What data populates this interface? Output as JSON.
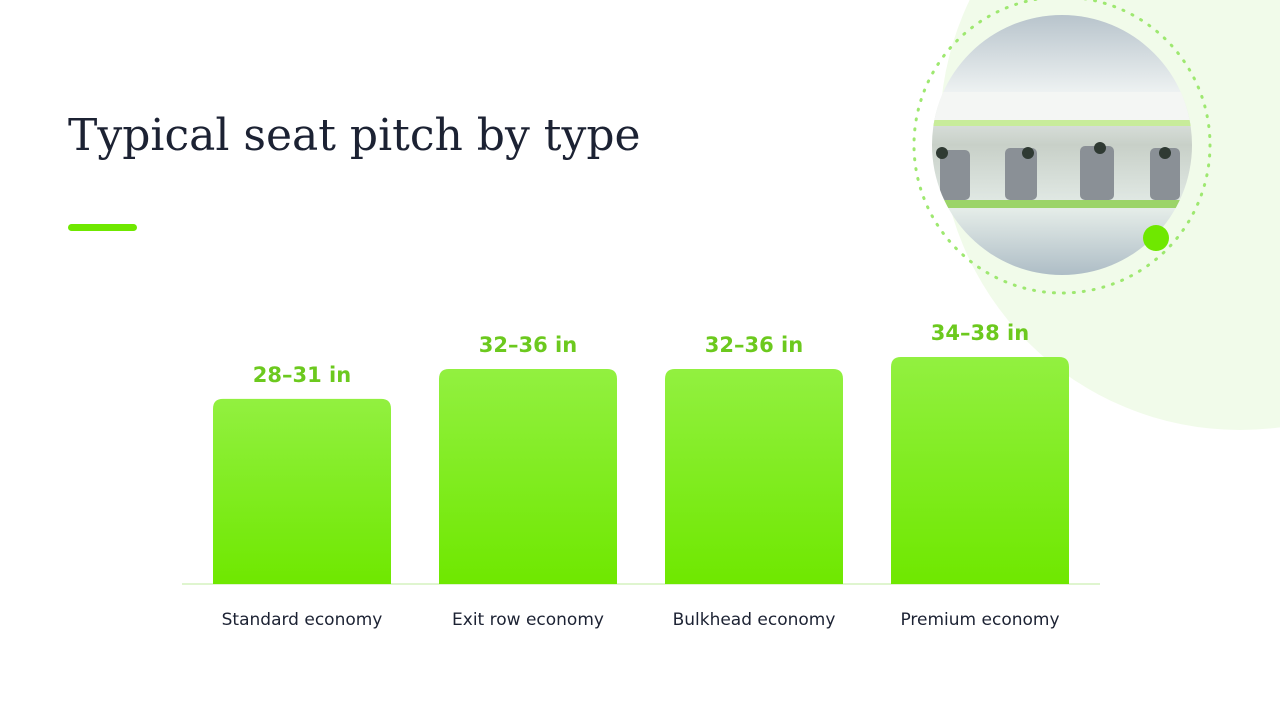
{
  "chart_data": {
    "type": "bar",
    "title": "Typical seat pitch by type",
    "categories": [
      "Standard economy",
      "Exit row economy",
      "Bulkhead economy",
      "Premium economy"
    ],
    "values": [
      31,
      36,
      36,
      38
    ],
    "value_labels": [
      "28–31 in",
      "32–36 in",
      "32–36 in",
      "34–38 in"
    ],
    "color": "#7ded1a",
    "ylim": [
      0,
      38
    ]
  }
}
